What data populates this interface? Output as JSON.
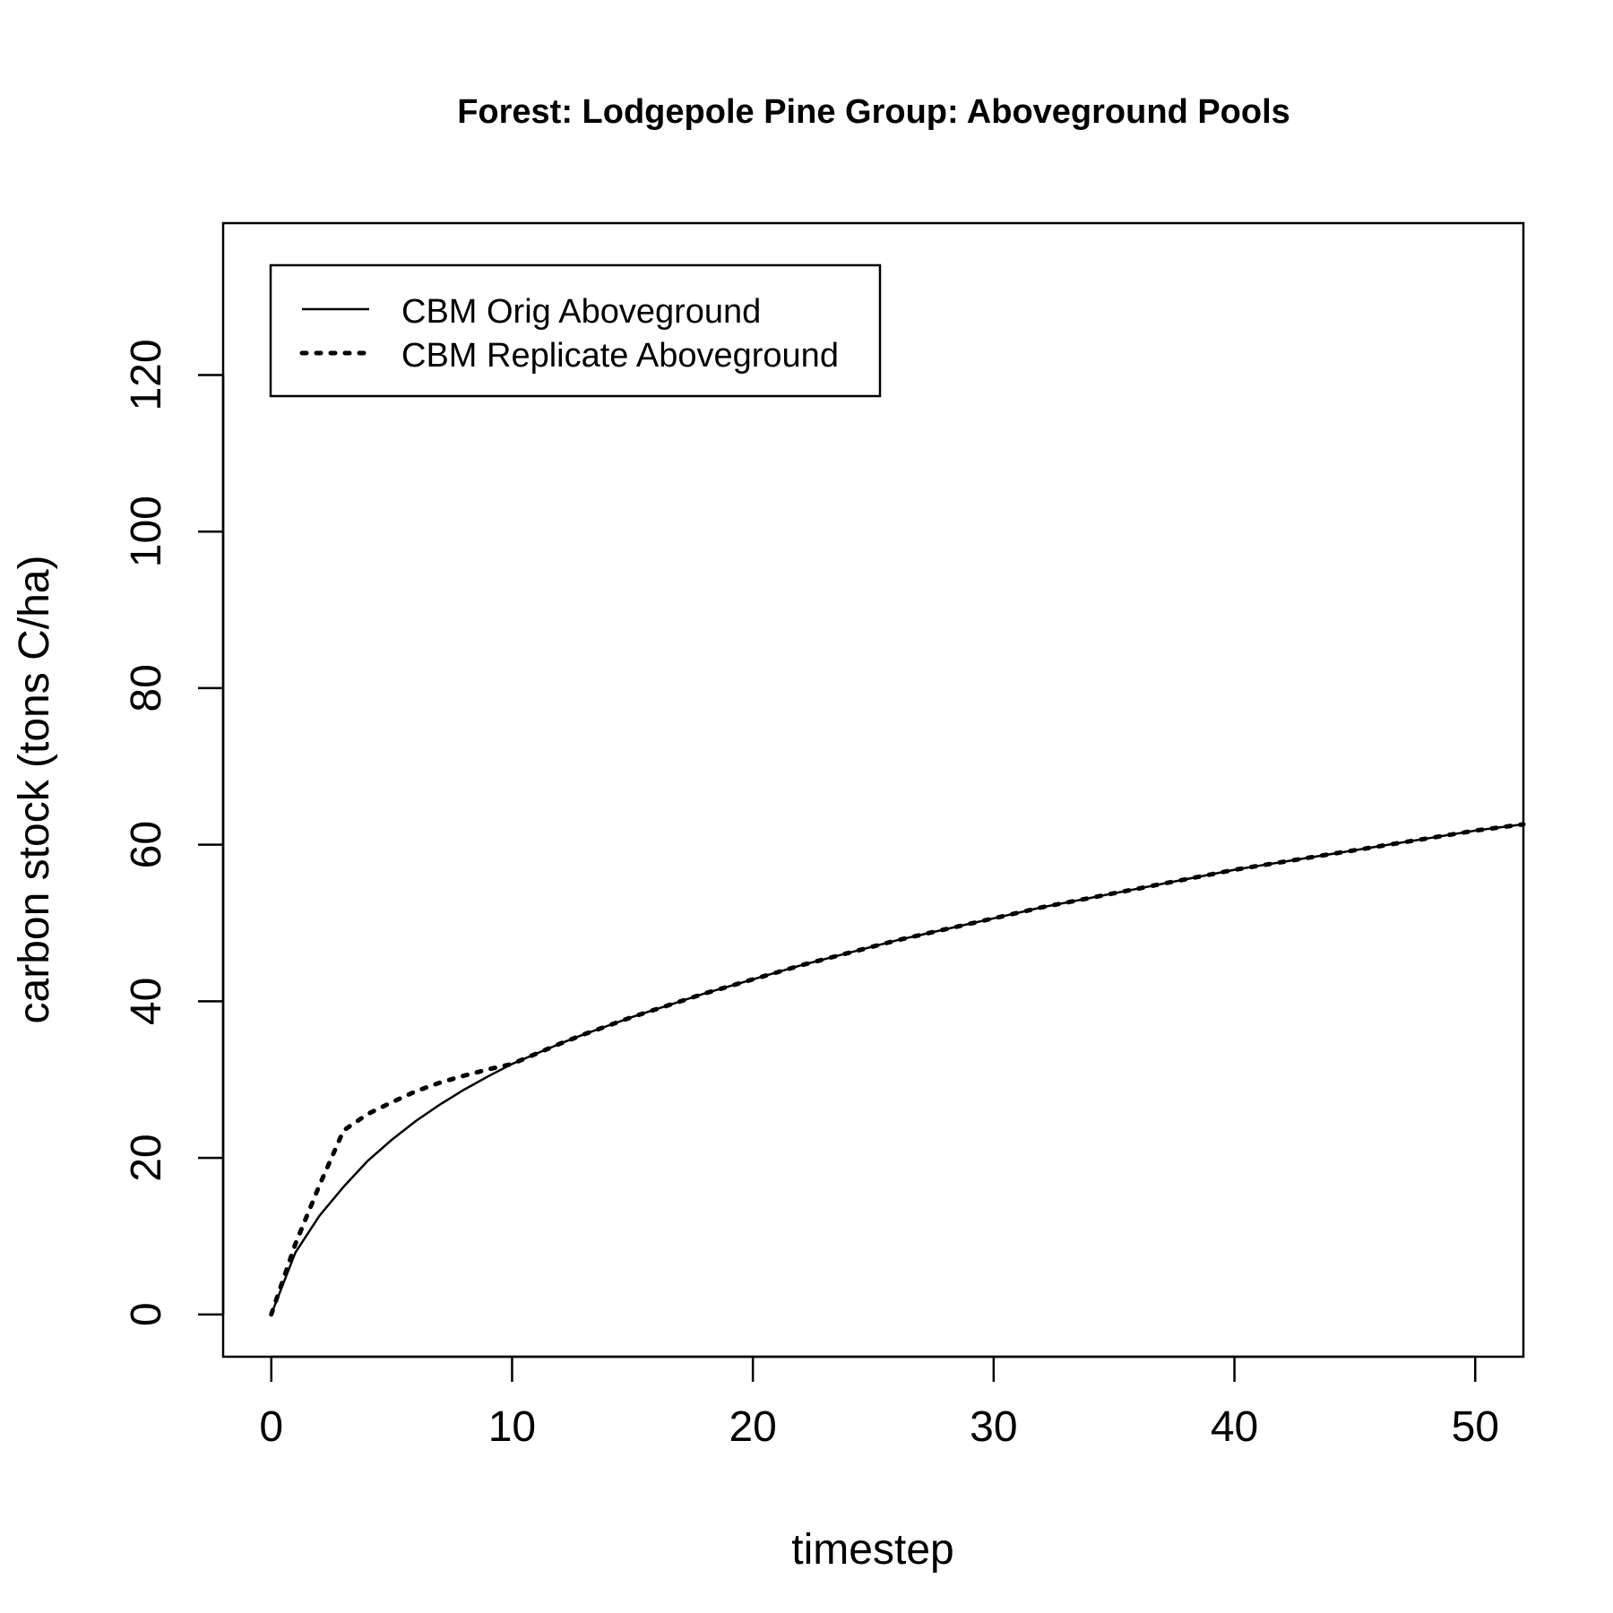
{
  "chart_data": {
    "type": "line",
    "title": "Forest: Lodgepole Pine Group: Aboveground Pools",
    "xlabel": "timestep",
    "ylabel": "carbon stock (tons C/ha)",
    "xlim": [
      -2,
      52
    ],
    "ylim": [
      -5.4,
      139.4
    ],
    "x_ticks": [
      0,
      10,
      20,
      30,
      40,
      50
    ],
    "y_ticks": [
      0,
      20,
      40,
      60,
      80,
      100,
      120
    ],
    "legend_position": "top-left",
    "series": [
      {
        "name": "CBM Orig Aboveground",
        "line_style": "solid",
        "color": "#000000",
        "x": [
          0,
          1,
          2,
          3,
          4,
          5,
          6,
          7,
          8,
          9,
          10,
          11,
          12,
          13,
          14,
          15,
          16,
          17,
          18,
          19,
          20,
          21,
          22,
          23,
          24,
          25,
          26,
          27,
          28,
          29,
          30,
          31,
          32,
          33,
          34,
          35,
          36,
          37,
          38,
          39,
          40,
          41,
          42,
          43,
          44,
          45,
          46,
          47,
          48,
          49,
          50,
          51,
          52
        ],
        "y": [
          0,
          7.9,
          12.6,
          16.3,
          19.6,
          22.3,
          24.7,
          26.8,
          28.7,
          30.4,
          32.0,
          33.3,
          34.6,
          35.8,
          36.9,
          38.0,
          39.0,
          40.0,
          41.0,
          41.9,
          42.8,
          43.7,
          44.6,
          45.4,
          46.2,
          47.0,
          47.8,
          48.5,
          49.2,
          49.9,
          50.6,
          51.3,
          52.0,
          52.6,
          53.2,
          53.8,
          54.4,
          55.0,
          55.6,
          56.2,
          56.8,
          57.3,
          57.8,
          58.3,
          58.8,
          59.3,
          59.8,
          60.3,
          60.8,
          61.3,
          61.8,
          62.2,
          62.6
        ]
      },
      {
        "name": "CBM Replicate Aboveground",
        "line_style": "dotted",
        "color": "#000000",
        "x": [
          0,
          1,
          2,
          3,
          4,
          5,
          6,
          7,
          8,
          9,
          10,
          11,
          12,
          13,
          14,
          15,
          16,
          17,
          18,
          19,
          20,
          21,
          22,
          23,
          24,
          25,
          26,
          27,
          28,
          29,
          30,
          31,
          32,
          33,
          34,
          35,
          36,
          37,
          38,
          39,
          40,
          41,
          42,
          43,
          44,
          45,
          46,
          47,
          48,
          49,
          50,
          51,
          52
        ],
        "y": [
          0,
          9.0,
          16.5,
          23.5,
          25.6,
          27.1,
          28.5,
          29.6,
          30.5,
          31.3,
          32.0,
          33.3,
          34.6,
          35.8,
          36.9,
          38.0,
          39.0,
          40.0,
          41.0,
          41.9,
          42.8,
          43.7,
          44.6,
          45.4,
          46.2,
          47.0,
          47.8,
          48.5,
          49.2,
          49.9,
          50.6,
          51.3,
          52.0,
          52.6,
          53.2,
          53.8,
          54.4,
          55.0,
          55.6,
          56.2,
          56.8,
          57.3,
          57.8,
          58.3,
          58.8,
          59.3,
          59.8,
          60.3,
          60.8,
          61.3,
          61.8,
          62.2,
          62.6
        ]
      }
    ]
  }
}
